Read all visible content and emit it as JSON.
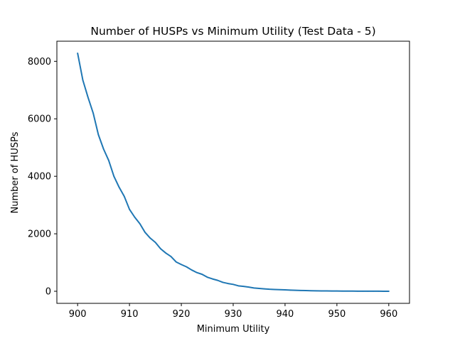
{
  "chart_data": {
    "type": "line",
    "title": "Number of HUSPs vs Minimum Utility (Test Data - 5)",
    "xlabel": "Minimum Utility",
    "ylabel": "Number of HUSPs",
    "xlim": [
      896,
      964
    ],
    "ylim": [
      -420,
      8700
    ],
    "xticks": [
      900,
      910,
      920,
      930,
      940,
      950,
      960
    ],
    "yticks": [
      0,
      2000,
      4000,
      6000,
      8000
    ],
    "grid": false,
    "color": "#1f77b4",
    "series": [
      {
        "x": [
          900,
          901,
          902,
          903,
          904,
          905,
          906,
          907,
          908,
          909,
          910,
          911,
          912,
          913,
          914,
          915,
          916,
          917,
          918,
          919,
          920,
          921,
          922,
          923,
          924,
          925,
          926,
          927,
          928,
          929,
          930,
          931,
          932,
          933,
          934,
          935,
          936,
          937,
          938,
          939,
          940,
          941,
          942,
          943,
          944,
          945,
          946,
          947,
          948,
          949,
          950,
          951,
          952,
          953,
          954,
          955,
          956,
          957,
          958,
          959,
          960
        ],
        "values": [
          8280,
          7350,
          6750,
          6200,
          5450,
          4950,
          4550,
          4000,
          3620,
          3300,
          2850,
          2580,
          2350,
          2050,
          1850,
          1700,
          1480,
          1330,
          1210,
          1020,
          930,
          850,
          740,
          650,
          590,
          490,
          430,
          380,
          310,
          270,
          240,
          190,
          170,
          145,
          115,
          100,
          85,
          70,
          62,
          55,
          48,
          40,
          33,
          28,
          24,
          20,
          16,
          13,
          11,
          9,
          8,
          7,
          6,
          5,
          4,
          3,
          3,
          2,
          2,
          1,
          1
        ]
      }
    ]
  }
}
